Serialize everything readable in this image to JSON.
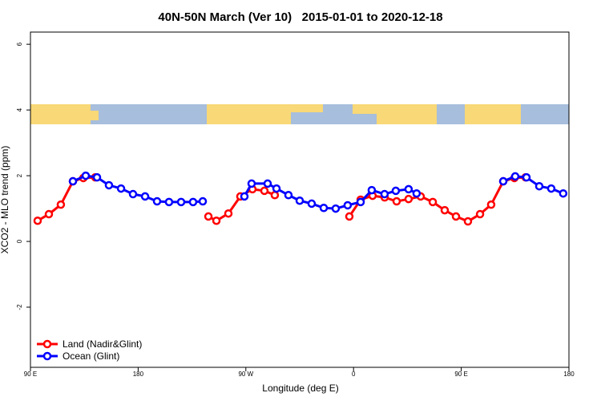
{
  "chart_data": {
    "type": "line",
    "title": "40N-50N March (Ver 10)   2015-01-01 to 2020-12-18",
    "xlabel": "Longitude (deg E)",
    "ylabel": "XCO2 - MLO trend (ppm)",
    "xlim": [
      90,
      540
    ],
    "ylim": [
      -3.83,
      6.37
    ],
    "xticks": [
      {
        "value": 90,
        "label": "90 E"
      },
      {
        "value": 180,
        "label": "180"
      },
      {
        "value": 270,
        "label": "90 W"
      },
      {
        "value": 360,
        "label": "0"
      },
      {
        "value": 450,
        "label": "90 E"
      },
      {
        "value": 540,
        "label": "180"
      }
    ],
    "yticks": [
      6,
      4,
      2,
      0,
      -2
    ],
    "legend": "bottom-left",
    "series": [
      {
        "name": "Land (Nadir&Glint)",
        "color": "#ff0000",
        "x": [
          96,
          105.4,
          115.4,
          125.5,
          134.2,
          144.2,
          null,
          238.7,
          245.4,
          255.4,
          265.4,
          275.5,
          285.5,
          294.2,
          null,
          356.5,
          365.9,
          375.9,
          386,
          396,
          406,
          416.1,
          426.2,
          436.2,
          445.6,
          455.6,
          465.7,
          475,
          485.1,
          494.4,
          503.8
        ],
        "values": [
          0.63,
          0.83,
          1.12,
          1.83,
          1.93,
          1.95,
          null,
          0.76,
          0.63,
          0.85,
          1.37,
          1.59,
          1.54,
          1.41,
          null,
          0.76,
          1.27,
          1.39,
          1.34,
          1.22,
          1.29,
          1.37,
          1.2,
          0.95,
          0.76,
          0.61,
          0.83,
          1.12,
          1.83,
          1.93,
          1.95
        ]
      },
      {
        "name": "Ocean (Glint)",
        "color": "#0000ff",
        "x": [
          125.5,
          136.2,
          145.6,
          155.6,
          165.7,
          175.7,
          185.8,
          195.8,
          205.8,
          215.9,
          225.9,
          234,
          null,
          268.8,
          274.8,
          288.2,
          295.6,
          305.6,
          315,
          325,
          335.1,
          345.1,
          355.1,
          365.9,
          375.2,
          385.9,
          395.3,
          406,
          412.7,
          null,
          485.1,
          495.1,
          504.5,
          515.2,
          525.2,
          535.2
        ],
        "values": [
          1.83,
          2.0,
          1.95,
          1.71,
          1.61,
          1.44,
          1.37,
          1.22,
          1.2,
          1.2,
          1.2,
          1.22,
          null,
          1.37,
          1.76,
          1.76,
          1.61,
          1.41,
          1.24,
          1.15,
          1.02,
          1.0,
          1.1,
          1.2,
          1.56,
          1.44,
          1.54,
          1.59,
          1.46,
          null,
          1.83,
          1.98,
          1.95,
          1.68,
          1.61,
          1.46
        ]
      }
    ]
  }
}
